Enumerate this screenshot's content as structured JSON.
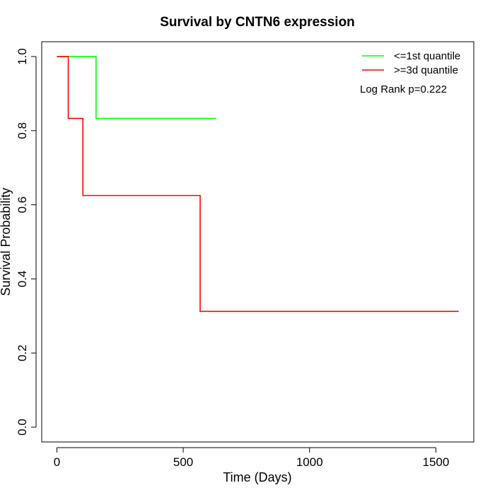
{
  "chart_data": {
    "type": "line",
    "subtype": "kaplan-meier step",
    "title": "Survival by CNTN6 expression",
    "xlabel": "Time (Days)",
    "ylabel": "Survival Probability",
    "xlim": [
      -60,
      1650
    ],
    "ylim": [
      -0.04,
      1.04
    ],
    "x_ticks": [
      0,
      500,
      1000,
      1500
    ],
    "x_tick_labels": [
      "0",
      "500",
      "1000",
      "1500"
    ],
    "y_ticks": [
      0.0,
      0.2,
      0.4,
      0.6,
      0.8,
      1.0
    ],
    "y_tick_labels": [
      "0.0",
      "0.2",
      "0.4",
      "0.6",
      "0.8",
      "1.0"
    ],
    "grid": false,
    "legend_position": "top-right",
    "annotation": "Log Rank p=0.222",
    "series": [
      {
        "name": "<=1st quantile",
        "color": "#00ff00",
        "steps": [
          [
            0,
            1.0
          ],
          [
            155,
            0.833
          ]
        ],
        "end_x": 630
      },
      {
        "name": ">=3d quantile",
        "color": "#ff0000",
        "steps": [
          [
            0,
            1.0
          ],
          [
            45,
            0.833
          ],
          [
            103,
            0.625
          ],
          [
            567,
            0.3125
          ]
        ],
        "end_x": 1590
      }
    ]
  }
}
